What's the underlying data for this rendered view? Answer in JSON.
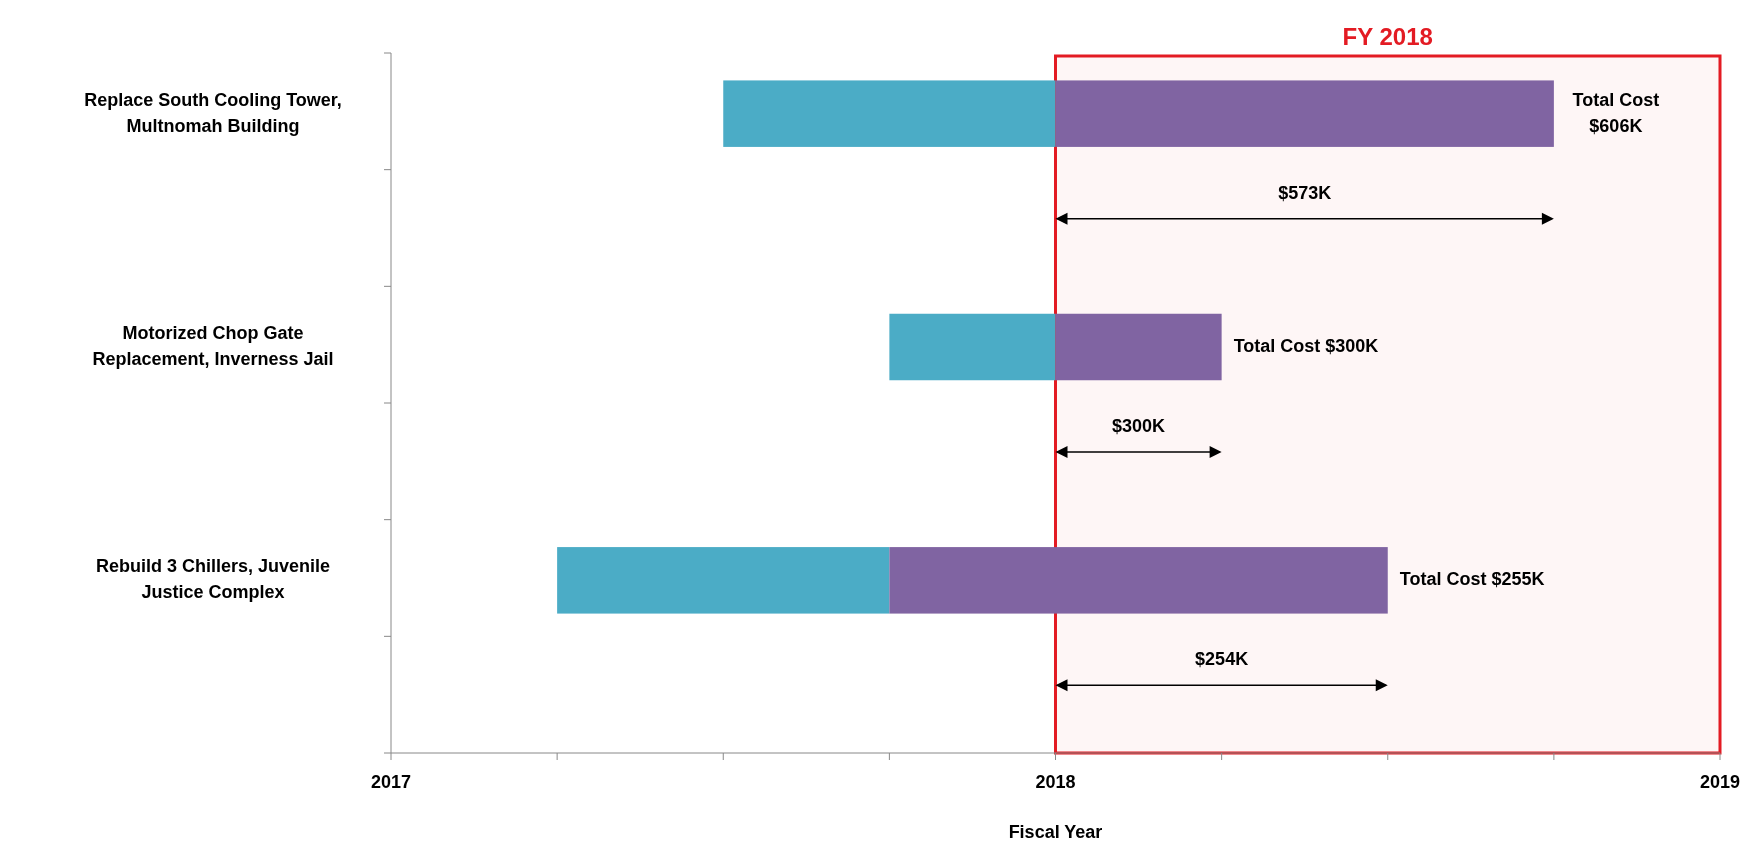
{
  "chart_data": {
    "type": "bar",
    "orientation": "horizontal",
    "categories": [
      "Replace South Cooling Tower, Multnomah Building",
      "Motorized Chop Gate Replacement, Inverness Jail",
      "Rebuild 3 Chillers, Juvenile Justice Complex"
    ],
    "series": [
      {
        "color": "#4bacc6",
        "base": [
          2017.5,
          2017.75,
          2017.25
        ],
        "values": [
          0.5,
          0.25,
          0.5
        ]
      },
      {
        "color": "#8064a2",
        "base": [
          2018,
          2018,
          2017.75
        ],
        "values": [
          0.75,
          0.25,
          0.75
        ]
      }
    ],
    "xlim": [
      2017,
      2019
    ],
    "xticks": [
      2017,
      {
        "value": 2017.25,
        "label": null
      },
      {
        "value": 2017.5,
        "label": null
      },
      {
        "value": 2017.75,
        "label": null
      },
      2018,
      {
        "value": 2018.25,
        "label": null
      },
      {
        "value": 2018.5,
        "label": null
      },
      {
        "value": 2018.75,
        "label": null
      },
      2019
    ],
    "xlabel": "Fiscal Year",
    "bands": [
      {
        "axis": "x",
        "from": 2018,
        "to": 2019,
        "label": "FY 2018",
        "color": "#e31b23"
      }
    ],
    "annotations": [
      "Total Cost $606K",
      "$573K",
      "Total Cost $300K",
      "$300K",
      "Total Cost $255K",
      "$254K"
    ]
  }
}
